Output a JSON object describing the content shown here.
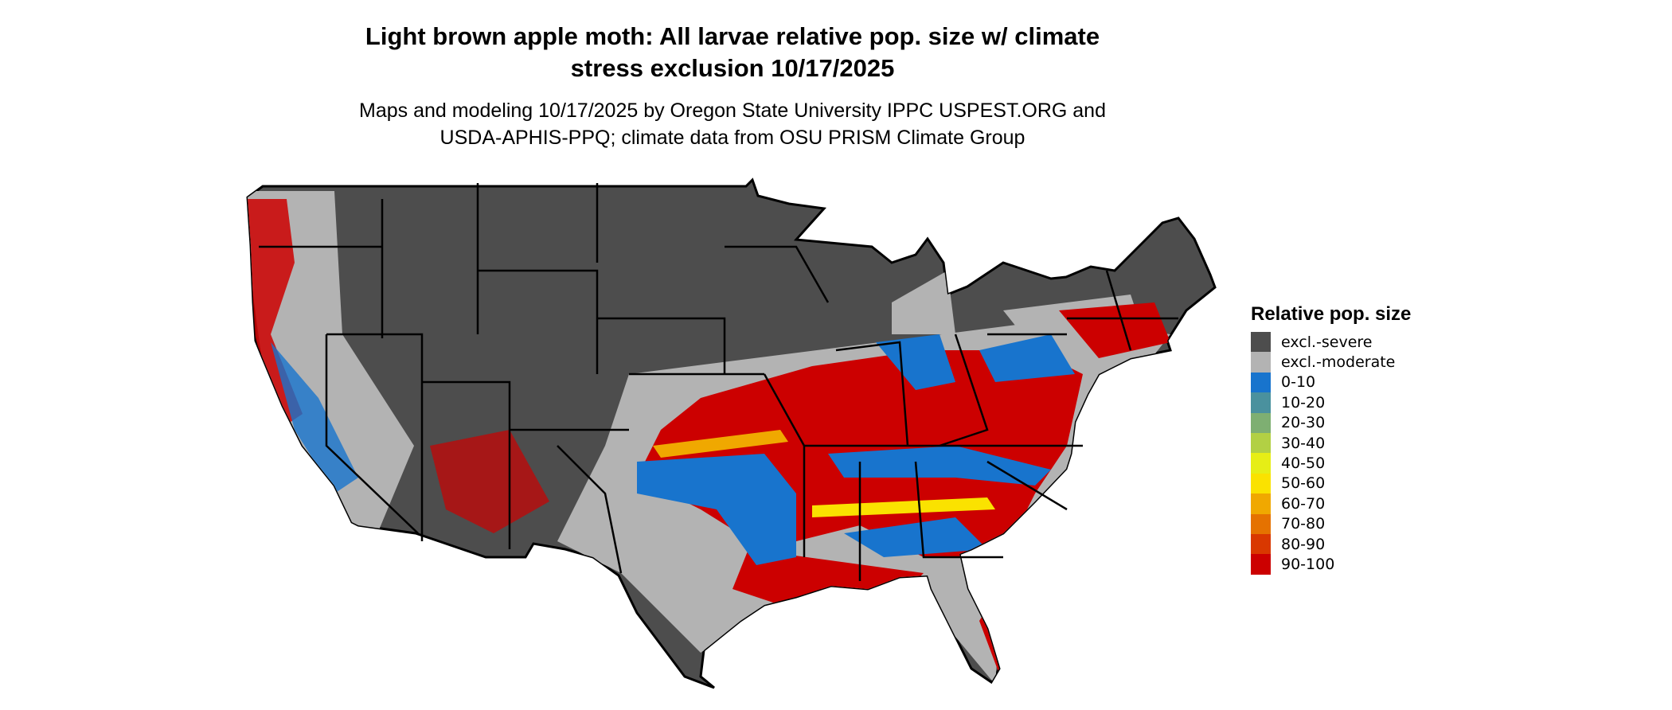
{
  "title_line1": "Light brown apple moth: All larvae relative pop. size w/ climate",
  "title_line2": "stress exclusion 10/17/2025",
  "subtitle_line1": "Maps and modeling 10/17/2025 by Oregon State University IPPC USPEST.ORG and",
  "subtitle_line2": "USDA-APHIS-PPQ; climate data from OSU PRISM Climate Group",
  "legend": {
    "title": "Relative pop. size",
    "items": [
      {
        "label": "excl.-severe",
        "color": "#4d4d4d"
      },
      {
        "label": "excl.-moderate",
        "color": "#b3b3b3"
      },
      {
        "label": "0-10",
        "color": "#1874cd"
      },
      {
        "label": "10-20",
        "color": "#4a919e"
      },
      {
        "label": "20-30",
        "color": "#7eaf72"
      },
      {
        "label": "30-40",
        "color": "#b2d044"
      },
      {
        "label": "40-50",
        "color": "#e6ee16"
      },
      {
        "label": "50-60",
        "color": "#fae200"
      },
      {
        "label": "60-70",
        "color": "#f0a800"
      },
      {
        "label": "70-80",
        "color": "#e57200"
      },
      {
        "label": "80-90",
        "color": "#d93800"
      },
      {
        "label": "90-100",
        "color": "#cc0000"
      }
    ]
  }
}
